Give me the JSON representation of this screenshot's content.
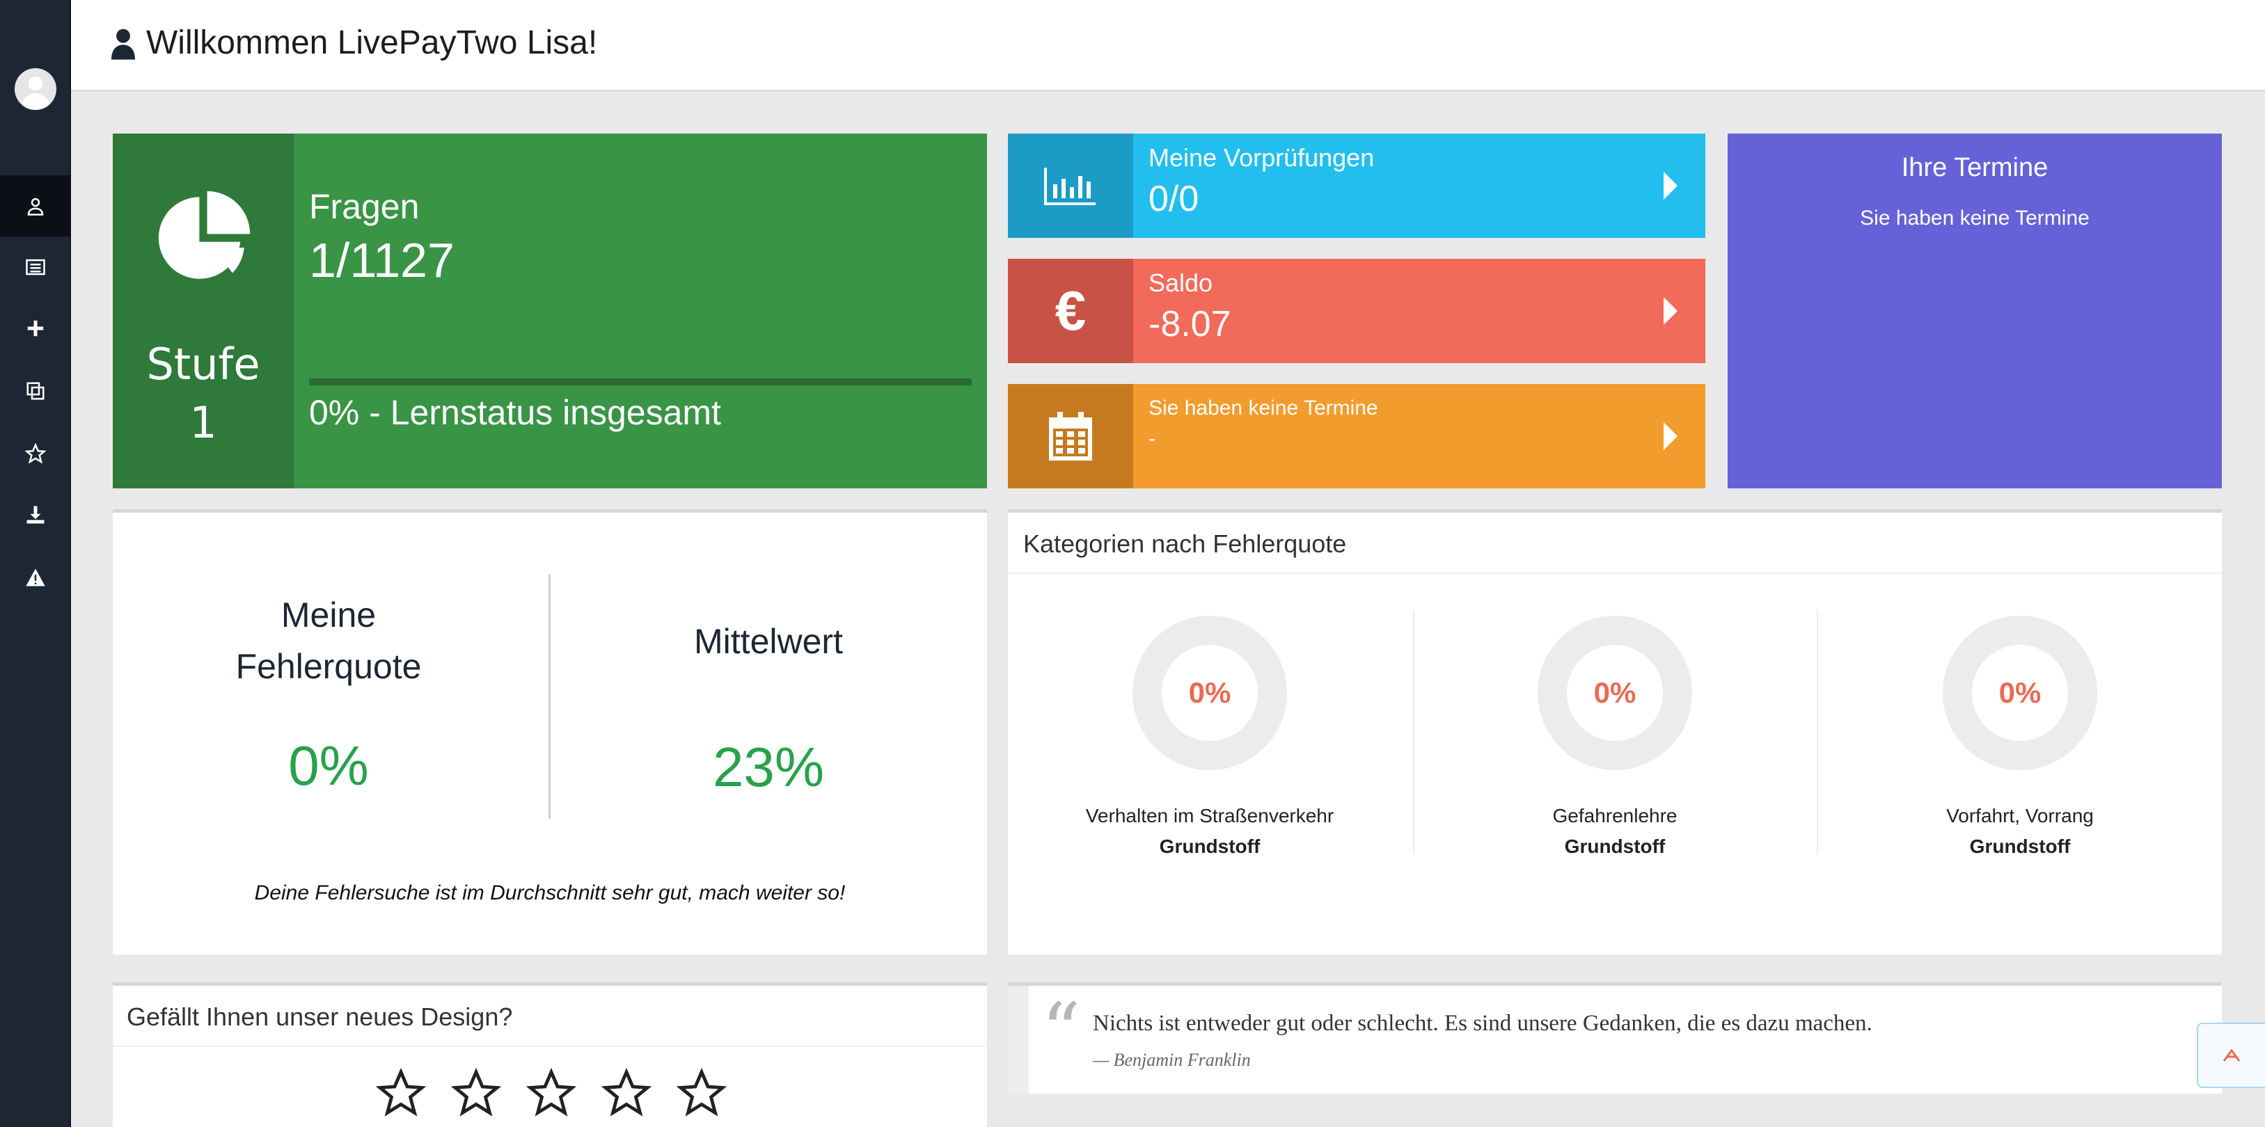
{
  "header": {
    "greeting": "Willkommen LivePayTwo Lisa!"
  },
  "sidebar": {
    "items": [
      {
        "icon": "user-icon"
      },
      {
        "icon": "list-icon"
      },
      {
        "icon": "plus-icon"
      },
      {
        "icon": "copy-icon"
      },
      {
        "icon": "star-icon"
      },
      {
        "icon": "download-icon"
      },
      {
        "icon": "warning-icon"
      }
    ]
  },
  "fragen": {
    "stufe_label": "Stufe",
    "stufe_value": "1",
    "label": "Fragen",
    "value": "1/1127",
    "progress": 0,
    "status": "0% - Lernstatus insgesamt",
    "color": "#3a9446"
  },
  "tiles": {
    "vorpruefungen": {
      "label": "Meine Vorprüfungen",
      "value": "0/0",
      "color": "#22bfee"
    },
    "saldo": {
      "label": "Saldo",
      "value": "-8.07",
      "symbol": "€",
      "color": "#f26a5a"
    },
    "termine": {
      "label": "Sie haben keine Termine",
      "value": "-",
      "color": "#f29c2e"
    }
  },
  "ihre_termine": {
    "title": "Ihre Termine",
    "text": "Sie haben keine Termine",
    "color": "#6562d8"
  },
  "fehlerquote": {
    "mine_label": "Meine Fehlerquote",
    "mine_value": "0%",
    "avg_label": "Mittelwert",
    "avg_value": "23%",
    "note": "Deine Fehlersuche ist im Durchschnitt sehr gut, mach weiter so!"
  },
  "kategorien": {
    "title": "Kategorien nach Fehlerquote",
    "items": [
      {
        "percent": "0%",
        "name": "Verhalten im Straßenverkehr",
        "sub": "Grundstoff"
      },
      {
        "percent": "0%",
        "name": "Gefahrenlehre",
        "sub": "Grundstoff"
      },
      {
        "percent": "0%",
        "name": "Vorfahrt, Vorrang",
        "sub": "Grundstoff"
      }
    ]
  },
  "design": {
    "title": "Gefällt Ihnen unser neues Design?",
    "stars": 5
  },
  "quote": {
    "text": "Nichts ist entweder gut oder schlecht. Es sind unsere Gedanken, die es dazu machen.",
    "author": "— Benjamin Franklin"
  }
}
